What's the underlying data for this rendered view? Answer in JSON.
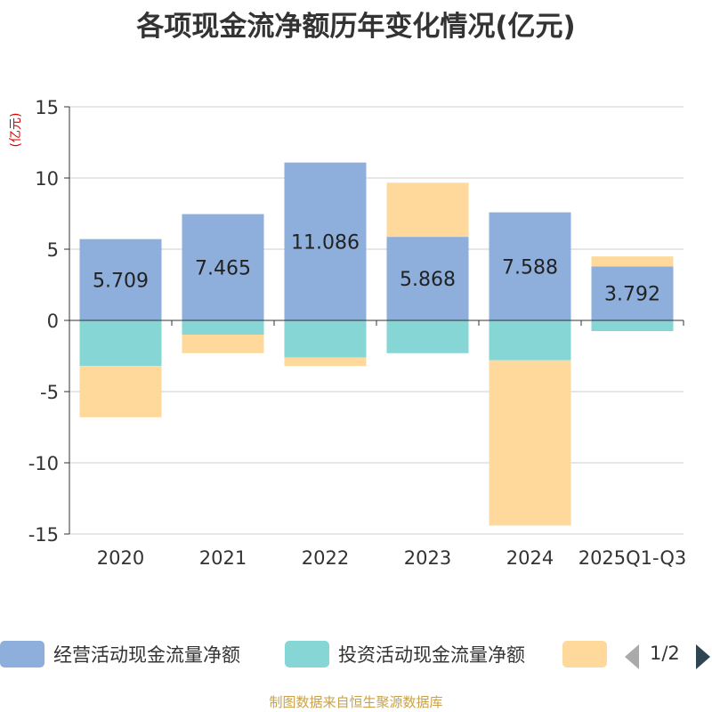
{
  "chart_data": {
    "type": "bar",
    "stacked": true,
    "title": "各项现金流净额历年变化情况(亿元)",
    "ylabel": "(亿元)",
    "ylim": [
      -15,
      15
    ],
    "yticks": [
      15,
      10,
      5,
      0,
      -5,
      -10,
      -15
    ],
    "categories": [
      "2020",
      "2021",
      "2022",
      "2023",
      "2024",
      "2025Q1-Q3"
    ],
    "series": [
      {
        "name": "经营活动现金流量净额",
        "color": "#8eaedb",
        "values": [
          5.709,
          7.465,
          11.086,
          5.868,
          7.588,
          3.792
        ]
      },
      {
        "name": "投资活动现金流量净额",
        "color": "#86d6d6",
        "values": [
          -3.2,
          -1.0,
          -2.6,
          -2.3,
          -2.8,
          -0.75
        ]
      },
      {
        "name": "",
        "color": "#fed99b",
        "values": [
          -3.6,
          -1.3,
          -0.6,
          3.8,
          -11.6,
          0.7
        ]
      }
    ],
    "data_labels": [
      "5.709",
      "7.465",
      "11.086",
      "5.868",
      "7.588",
      "3.792"
    ]
  },
  "legend": {
    "items": [
      {
        "label": "经营活动现金流量净额",
        "color": "#8eaedb"
      },
      {
        "label": "投资活动现金流量净额",
        "color": "#86d6d6"
      },
      {
        "label": "",
        "color": "#fed99b"
      }
    ],
    "page": "1/2"
  },
  "source_note": "制图数据来自恒生聚源数据库"
}
